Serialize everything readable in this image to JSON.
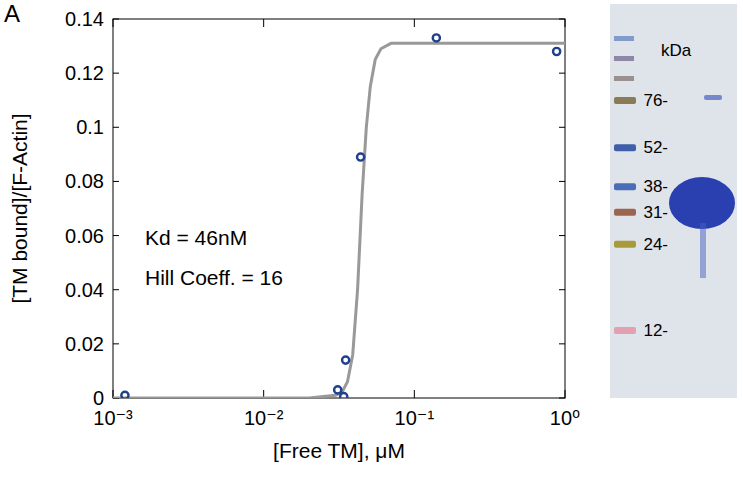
{
  "chart_data": {
    "type": "scatter",
    "panel_label": "A",
    "x_label": "[Free TM], μM",
    "y_label": "[TM bound]/[F-Actin]",
    "annotations": [
      "Kd = 46nM",
      "Hill Coeff. = 16"
    ],
    "log": "x",
    "grid": false,
    "xlim": [
      0.001,
      1
    ],
    "ylim": [
      0,
      0.14
    ],
    "xticks": [
      {
        "value": 0.001,
        "label": "10⁻³"
      },
      {
        "value": 0.01,
        "label": "10⁻²"
      },
      {
        "value": 0.1,
        "label": "10⁻¹"
      },
      {
        "value": 1,
        "label": "10⁰"
      }
    ],
    "yticks": [
      0,
      0.02,
      0.04,
      0.06,
      0.08,
      0.1,
      0.12,
      0.14
    ],
    "series": [
      {
        "type": "scatter",
        "color": "#1f3f8f",
        "marker": "circle",
        "x": [
          0.0012,
          0.031,
          0.034,
          0.035,
          0.044,
          0.14,
          0.88
        ],
        "values": [
          0.001,
          0.003,
          0.0005,
          0.014,
          0.089,
          0.133,
          0.128
        ]
      },
      {
        "type": "line",
        "color": "#999999",
        "line_style": "solid",
        "x": [
          0.001,
          0.01,
          0.02,
          0.03,
          0.033,
          0.036,
          0.039,
          0.042,
          0.045,
          0.048,
          0.051,
          0.055,
          0.06,
          0.07,
          0.1,
          1
        ],
        "values": [
          0,
          0,
          0,
          0.001,
          0.002,
          0.006,
          0.016,
          0.04,
          0.075,
          0.1,
          0.115,
          0.125,
          0.129,
          0.131,
          0.131,
          0.131
        ]
      }
    ]
  },
  "gel": {
    "unit_label": "kDa",
    "markers": [
      {
        "value": 76,
        "label": "76-"
      },
      {
        "value": 52,
        "label": "52-"
      },
      {
        "value": 38,
        "label": "38-"
      },
      {
        "value": 31,
        "label": "31-"
      },
      {
        "value": 24,
        "label": "24-"
      },
      {
        "value": 12,
        "label": "12-"
      }
    ]
  }
}
